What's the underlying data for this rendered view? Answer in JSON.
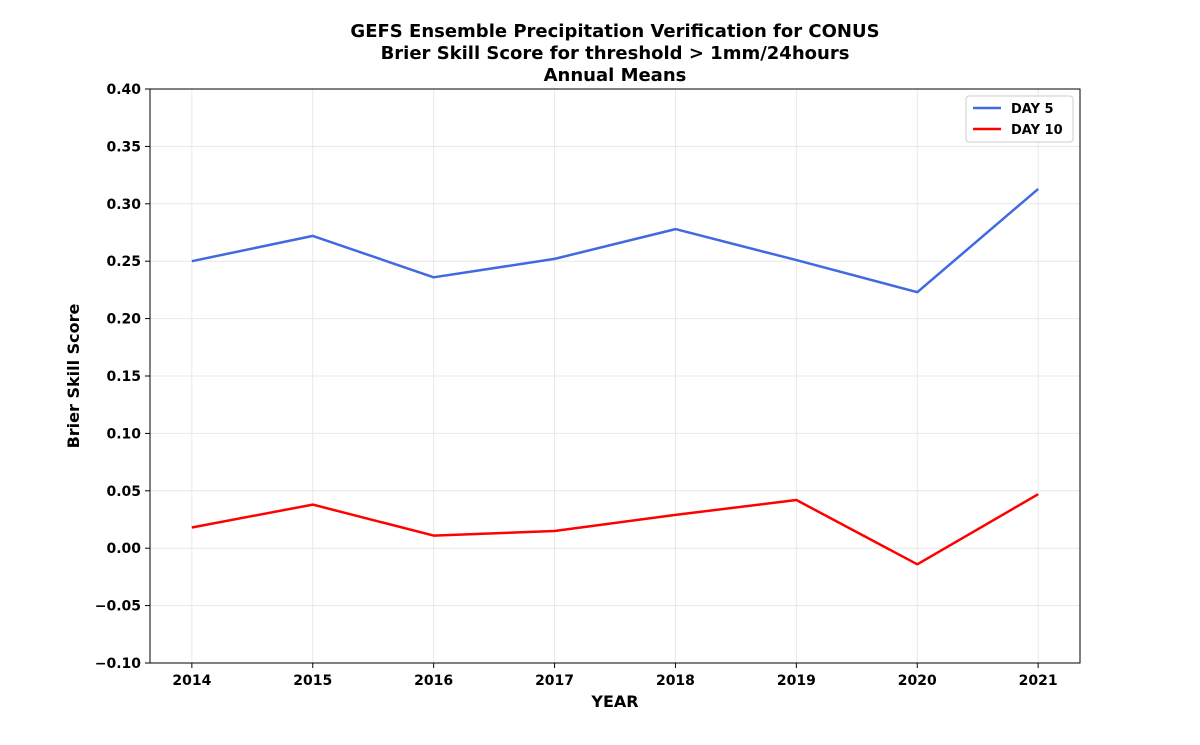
{
  "chart_data": {
    "type": "line",
    "title_lines": [
      "GEFS Ensemble Precipitation Verification for CONUS",
      "Brier Skill Score for threshold > 1mm/24hours",
      "Annual Means"
    ],
    "xlabel": "YEAR",
    "ylabel": "Brier Skill Score",
    "x": [
      2014,
      2015,
      2016,
      2017,
      2018,
      2019,
      2020,
      2021
    ],
    "x_tick_labels": [
      "2014",
      "2015",
      "2016",
      "2017",
      "2018",
      "2019",
      "2020",
      "2021"
    ],
    "ylim": [
      -0.1,
      0.4
    ],
    "y_ticks": [
      -0.1,
      -0.05,
      0.0,
      0.05,
      0.1,
      0.15,
      0.2,
      0.25,
      0.3,
      0.35,
      0.4
    ],
    "y_tick_labels": [
      "−0.10",
      "−0.05",
      "0.00",
      "0.05",
      "0.10",
      "0.15",
      "0.20",
      "0.25",
      "0.30",
      "0.35",
      "0.40"
    ],
    "grid": true,
    "legend_position": "top-right",
    "series": [
      {
        "name": "DAY 5",
        "color": "#4169e1",
        "values": [
          0.25,
          0.272,
          0.236,
          0.252,
          0.278,
          0.251,
          0.223,
          0.313
        ]
      },
      {
        "name": "DAY 10",
        "color": "#ff0000",
        "values": [
          0.018,
          0.038,
          0.011,
          0.015,
          0.029,
          0.042,
          -0.014,
          0.047
        ]
      }
    ]
  }
}
